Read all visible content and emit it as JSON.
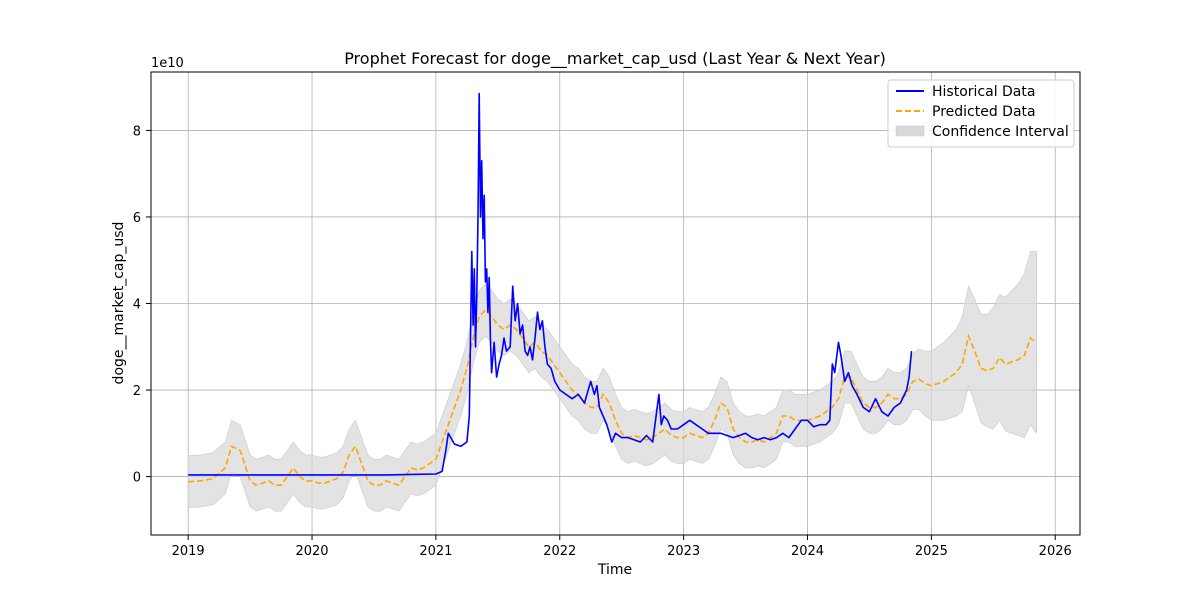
{
  "chart_data": {
    "type": "line",
    "title": "Prophet Forecast for doge__market_cap_usd (Last Year & Next Year)",
    "xlabel": "Time",
    "ylabel": "doge__market_cap_usd",
    "y_scale_label": "1e10",
    "xlim": [
      2018.7,
      2026.2
    ],
    "ylim": [
      -1.35,
      9.35
    ],
    "x_ticks": [
      2019,
      2020,
      2021,
      2022,
      2023,
      2024,
      2025,
      2026
    ],
    "x_tick_labels": [
      "2019",
      "2020",
      "2021",
      "2022",
      "2023",
      "2024",
      "2025",
      "2026"
    ],
    "y_ticks": [
      0,
      2,
      4,
      6,
      8
    ],
    "y_tick_labels": [
      "0",
      "2",
      "4",
      "6",
      "8"
    ],
    "grid": true,
    "legend_position": "top-right",
    "colors": {
      "historical": "#0000ff",
      "predicted": "#ffa500",
      "interval": "#d9d9d9"
    },
    "legend": [
      {
        "key": "historical",
        "label": "Historical Data",
        "style": "solid"
      },
      {
        "key": "predicted",
        "label": "Predicted Data",
        "style": "dashed"
      },
      {
        "key": "interval",
        "label": "Confidence Interval",
        "style": "fill"
      }
    ],
    "series": [
      {
        "name": "Historical Data",
        "x": [
          2019.0,
          2019.2,
          2019.4,
          2019.6,
          2019.8,
          2020.0,
          2020.2,
          2020.4,
          2020.6,
          2020.8,
          2021.0,
          2021.05,
          2021.08,
          2021.1,
          2021.15,
          2021.2,
          2021.25,
          2021.27,
          2021.29,
          2021.3,
          2021.31,
          2021.32,
          2021.33,
          2021.34,
          2021.35,
          2021.36,
          2021.37,
          2021.38,
          2021.39,
          2021.4,
          2021.41,
          2021.42,
          2021.43,
          2021.44,
          2021.45,
          2021.47,
          2021.49,
          2021.51,
          2021.53,
          2021.55,
          2021.57,
          2021.6,
          2021.62,
          2021.64,
          2021.66,
          2021.68,
          2021.7,
          2021.72,
          2021.74,
          2021.76,
          2021.78,
          2021.8,
          2021.82,
          2021.84,
          2021.86,
          2021.88,
          2021.9,
          2021.93,
          2021.96,
          2022.0,
          2022.05,
          2022.1,
          2022.15,
          2022.2,
          2022.25,
          2022.28,
          2022.3,
          2022.32,
          2022.35,
          2022.38,
          2022.42,
          2022.45,
          2022.5,
          2022.55,
          2022.6,
          2022.65,
          2022.7,
          2022.75,
          2022.8,
          2022.82,
          2022.84,
          2022.87,
          2022.9,
          2022.95,
          2023.0,
          2023.05,
          2023.1,
          2023.15,
          2023.2,
          2023.25,
          2023.3,
          2023.35,
          2023.4,
          2023.45,
          2023.5,
          2023.55,
          2023.6,
          2023.65,
          2023.7,
          2023.75,
          2023.8,
          2023.85,
          2023.9,
          2023.95,
          2024.0,
          2024.05,
          2024.1,
          2024.15,
          2024.18,
          2024.2,
          2024.22,
          2024.25,
          2024.27,
          2024.3,
          2024.33,
          2024.36,
          2024.4,
          2024.45,
          2024.5,
          2024.55,
          2024.6,
          2024.65,
          2024.7,
          2024.75,
          2024.8,
          2024.82,
          2024.84
        ],
        "y": [
          0.04,
          0.04,
          0.04,
          0.04,
          0.04,
          0.04,
          0.04,
          0.04,
          0.04,
          0.05,
          0.06,
          0.12,
          0.6,
          1.0,
          0.75,
          0.7,
          0.8,
          1.4,
          5.2,
          3.5,
          4.8,
          3.0,
          4.2,
          6.0,
          8.85,
          6.0,
          7.3,
          5.5,
          6.5,
          4.5,
          4.8,
          3.8,
          4.6,
          3.2,
          2.4,
          3.1,
          2.3,
          2.6,
          2.8,
          3.2,
          2.9,
          3.0,
          4.4,
          3.6,
          4.0,
          3.3,
          3.5,
          2.9,
          2.8,
          3.0,
          2.7,
          3.2,
          3.8,
          3.4,
          3.6,
          3.0,
          2.6,
          2.5,
          2.2,
          2.0,
          1.9,
          1.8,
          1.9,
          1.7,
          2.2,
          1.9,
          2.1,
          1.6,
          1.4,
          1.2,
          0.8,
          1.0,
          0.9,
          0.9,
          0.85,
          0.8,
          0.95,
          0.8,
          1.9,
          1.2,
          1.4,
          1.3,
          1.1,
          1.1,
          1.2,
          1.3,
          1.2,
          1.1,
          1.0,
          1.0,
          1.0,
          0.95,
          0.9,
          0.95,
          1.0,
          0.9,
          0.85,
          0.9,
          0.85,
          0.9,
          1.0,
          0.9,
          1.1,
          1.3,
          1.3,
          1.15,
          1.2,
          1.2,
          1.3,
          2.6,
          2.4,
          3.1,
          2.8,
          2.2,
          2.4,
          2.1,
          1.9,
          1.6,
          1.5,
          1.8,
          1.5,
          1.4,
          1.6,
          1.7,
          2.0,
          2.3,
          2.9
        ]
      },
      {
        "name": "Predicted Data",
        "x": [
          2019.0,
          2019.1,
          2019.2,
          2019.3,
          2019.35,
          2019.42,
          2019.5,
          2019.55,
          2019.6,
          2019.65,
          2019.7,
          2019.75,
          2019.8,
          2019.85,
          2019.9,
          2019.95,
          2020.0,
          2020.05,
          2020.1,
          2020.15,
          2020.2,
          2020.25,
          2020.3,
          2020.35,
          2020.4,
          2020.45,
          2020.5,
          2020.55,
          2020.6,
          2020.65,
          2020.7,
          2020.75,
          2020.8,
          2020.85,
          2020.9,
          2020.95,
          2021.0,
          2021.05,
          2021.1,
          2021.15,
          2021.2,
          2021.25,
          2021.3,
          2021.35,
          2021.4,
          2021.45,
          2021.5,
          2021.55,
          2021.6,
          2021.65,
          2021.7,
          2021.75,
          2021.8,
          2021.85,
          2021.9,
          2021.95,
          2022.0,
          2022.05,
          2022.1,
          2022.15,
          2022.2,
          2022.25,
          2022.3,
          2022.35,
          2022.4,
          2022.45,
          2022.5,
          2022.55,
          2022.6,
          2022.65,
          2022.7,
          2022.75,
          2022.8,
          2022.85,
          2022.9,
          2022.95,
          2023.0,
          2023.05,
          2023.1,
          2023.15,
          2023.2,
          2023.25,
          2023.3,
          2023.35,
          2023.4,
          2023.45,
          2023.5,
          2023.55,
          2023.6,
          2023.65,
          2023.7,
          2023.75,
          2023.8,
          2023.85,
          2023.9,
          2023.95,
          2024.0,
          2024.05,
          2024.1,
          2024.15,
          2024.2,
          2024.25,
          2024.3,
          2024.35,
          2024.4,
          2024.45,
          2024.5,
          2024.55,
          2024.6,
          2024.65,
          2024.7,
          2024.75,
          2024.8,
          2024.85,
          2024.9,
          2024.95,
          2025.0,
          2025.05,
          2025.1,
          2025.15,
          2025.2,
          2025.25,
          2025.3,
          2025.35,
          2025.4,
          2025.45,
          2025.5,
          2025.55,
          2025.6,
          2025.65,
          2025.7,
          2025.75,
          2025.8,
          2025.85
        ],
        "y": [
          -0.12,
          -0.1,
          -0.05,
          0.2,
          0.7,
          0.6,
          -0.1,
          -0.2,
          -0.15,
          -0.1,
          -0.2,
          -0.2,
          0.0,
          0.2,
          0.0,
          -0.1,
          -0.1,
          -0.15,
          -0.15,
          -0.1,
          -0.05,
          0.1,
          0.5,
          0.7,
          0.3,
          -0.1,
          -0.2,
          -0.2,
          -0.1,
          -0.15,
          -0.2,
          0.0,
          0.2,
          0.15,
          0.2,
          0.3,
          0.4,
          0.8,
          1.2,
          1.6,
          2.0,
          2.5,
          3.2,
          3.7,
          3.85,
          3.7,
          3.5,
          3.4,
          3.5,
          3.4,
          3.2,
          3.0,
          3.1,
          2.9,
          2.8,
          2.6,
          2.4,
          2.2,
          2.0,
          1.9,
          1.7,
          1.6,
          1.6,
          1.9,
          1.7,
          1.3,
          1.0,
          0.9,
          0.95,
          0.9,
          0.85,
          0.9,
          1.0,
          1.1,
          0.95,
          0.9,
          0.9,
          1.0,
          0.95,
          0.9,
          1.0,
          1.3,
          1.7,
          1.6,
          1.1,
          0.9,
          0.8,
          0.8,
          0.85,
          0.8,
          0.9,
          1.0,
          1.4,
          1.4,
          1.3,
          1.3,
          1.3,
          1.35,
          1.4,
          1.5,
          1.6,
          1.8,
          2.3,
          2.3,
          2.0,
          1.7,
          1.6,
          1.6,
          1.7,
          1.9,
          1.8,
          1.8,
          1.9,
          2.2,
          2.25,
          2.15,
          2.1,
          2.15,
          2.2,
          2.3,
          2.4,
          2.6,
          3.25,
          2.9,
          2.5,
          2.45,
          2.5,
          2.75,
          2.6,
          2.65,
          2.7,
          2.8,
          3.2,
          3.1
        ]
      },
      {
        "name": "Confidence Interval",
        "x": [
          2019.0,
          2019.1,
          2019.2,
          2019.3,
          2019.35,
          2019.42,
          2019.5,
          2019.55,
          2019.6,
          2019.65,
          2019.7,
          2019.75,
          2019.8,
          2019.85,
          2019.9,
          2019.95,
          2020.0,
          2020.05,
          2020.1,
          2020.15,
          2020.2,
          2020.25,
          2020.3,
          2020.35,
          2020.4,
          2020.45,
          2020.5,
          2020.55,
          2020.6,
          2020.65,
          2020.7,
          2020.75,
          2020.8,
          2020.85,
          2020.9,
          2020.95,
          2021.0,
          2021.05,
          2021.1,
          2021.15,
          2021.2,
          2021.25,
          2021.3,
          2021.35,
          2021.4,
          2021.45,
          2021.5,
          2021.55,
          2021.6,
          2021.65,
          2021.7,
          2021.75,
          2021.8,
          2021.85,
          2021.9,
          2021.95,
          2022.0,
          2022.05,
          2022.1,
          2022.15,
          2022.2,
          2022.25,
          2022.3,
          2022.35,
          2022.4,
          2022.45,
          2022.5,
          2022.55,
          2022.6,
          2022.65,
          2022.7,
          2022.75,
          2022.8,
          2022.85,
          2022.9,
          2022.95,
          2023.0,
          2023.05,
          2023.1,
          2023.15,
          2023.2,
          2023.25,
          2023.3,
          2023.35,
          2023.4,
          2023.45,
          2023.5,
          2023.55,
          2023.6,
          2023.65,
          2023.7,
          2023.75,
          2023.8,
          2023.85,
          2023.9,
          2023.95,
          2024.0,
          2024.05,
          2024.1,
          2024.15,
          2024.2,
          2024.25,
          2024.3,
          2024.35,
          2024.4,
          2024.45,
          2024.5,
          2024.55,
          2024.6,
          2024.65,
          2024.7,
          2024.75,
          2024.8,
          2024.85,
          2024.9,
          2024.95,
          2025.0,
          2025.05,
          2025.1,
          2025.15,
          2025.2,
          2025.25,
          2025.3,
          2025.35,
          2025.4,
          2025.45,
          2025.5,
          2025.55,
          2025.6,
          2025.65,
          2025.7,
          2025.75,
          2025.8,
          2025.85
        ],
        "lower": [
          -0.72,
          -0.7,
          -0.65,
          -0.4,
          0.1,
          0.0,
          -0.7,
          -0.8,
          -0.75,
          -0.7,
          -0.8,
          -0.8,
          -0.6,
          -0.4,
          -0.6,
          -0.7,
          -0.7,
          -0.75,
          -0.75,
          -0.7,
          -0.65,
          -0.5,
          -0.1,
          0.1,
          -0.3,
          -0.7,
          -0.8,
          -0.8,
          -0.7,
          -0.75,
          -0.8,
          -0.6,
          -0.4,
          -0.45,
          -0.4,
          -0.3,
          -0.2,
          0.2,
          0.6,
          1.0,
          1.4,
          1.9,
          2.6,
          3.1,
          3.25,
          3.1,
          2.9,
          2.8,
          2.9,
          2.8,
          2.6,
          2.4,
          2.5,
          2.3,
          2.2,
          2.0,
          1.8,
          1.6,
          1.4,
          1.3,
          1.1,
          1.0,
          1.0,
          1.3,
          1.1,
          0.7,
          0.4,
          0.3,
          0.35,
          0.3,
          0.25,
          0.3,
          0.4,
          0.5,
          0.35,
          0.3,
          0.3,
          0.4,
          0.35,
          0.3,
          0.4,
          0.7,
          1.1,
          1.0,
          0.5,
          0.3,
          0.2,
          0.2,
          0.25,
          0.2,
          0.3,
          0.4,
          0.8,
          0.8,
          0.7,
          0.7,
          0.7,
          0.75,
          0.8,
          0.9,
          1.0,
          1.2,
          1.7,
          1.7,
          1.4,
          1.1,
          1.0,
          1.0,
          1.1,
          1.3,
          1.2,
          1.2,
          1.3,
          1.55,
          1.55,
          1.4,
          1.3,
          1.3,
          1.3,
          1.35,
          1.4,
          1.5,
          2.1,
          1.7,
          1.25,
          1.15,
          1.1,
          1.3,
          1.05,
          1.0,
          0.95,
          0.9,
          1.2,
          1.0
        ],
        "upper": [
          0.48,
          0.5,
          0.55,
          0.8,
          1.3,
          1.2,
          0.5,
          0.4,
          0.45,
          0.5,
          0.4,
          0.4,
          0.6,
          0.8,
          0.6,
          0.5,
          0.5,
          0.45,
          0.45,
          0.5,
          0.55,
          0.7,
          1.1,
          1.3,
          0.9,
          0.5,
          0.4,
          0.4,
          0.5,
          0.45,
          0.4,
          0.6,
          0.8,
          0.75,
          0.8,
          0.9,
          1.0,
          1.4,
          1.8,
          2.2,
          2.6,
          3.1,
          3.8,
          4.3,
          4.45,
          4.3,
          4.1,
          4.0,
          4.1,
          4.0,
          3.8,
          3.6,
          3.7,
          3.5,
          3.4,
          3.2,
          3.0,
          2.8,
          2.6,
          2.5,
          2.3,
          2.2,
          2.2,
          2.5,
          2.3,
          1.9,
          1.6,
          1.5,
          1.55,
          1.5,
          1.45,
          1.5,
          1.6,
          1.7,
          1.55,
          1.5,
          1.5,
          1.6,
          1.55,
          1.5,
          1.6,
          1.9,
          2.3,
          2.2,
          1.7,
          1.5,
          1.4,
          1.4,
          1.45,
          1.4,
          1.5,
          1.6,
          2.0,
          2.0,
          1.9,
          1.9,
          1.9,
          1.95,
          2.0,
          2.1,
          2.2,
          2.4,
          2.9,
          2.9,
          2.6,
          2.3,
          2.2,
          2.2,
          2.3,
          2.5,
          2.4,
          2.4,
          2.5,
          2.85,
          2.95,
          2.9,
          2.9,
          3.0,
          3.1,
          3.25,
          3.4,
          3.7,
          4.4,
          4.1,
          3.75,
          3.75,
          3.9,
          4.2,
          4.15,
          4.3,
          4.45,
          4.7,
          5.2,
          5.2
        ]
      }
    ]
  }
}
